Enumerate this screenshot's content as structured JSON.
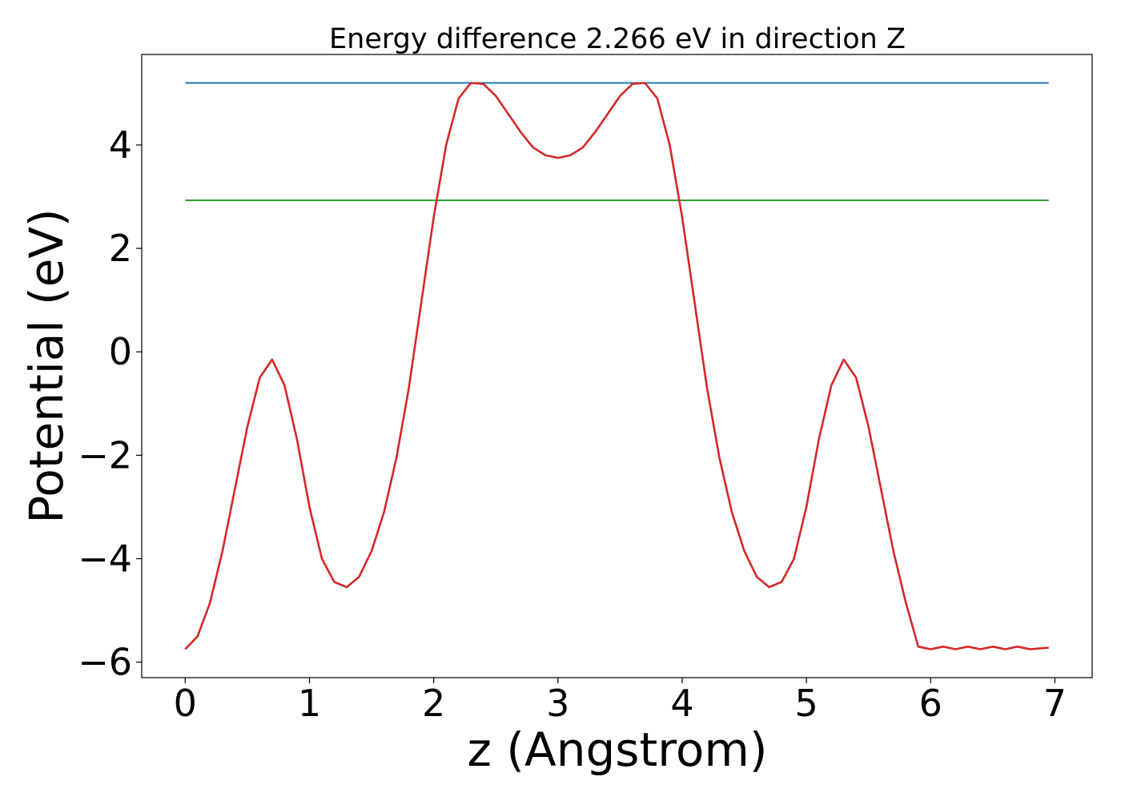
{
  "chart_data": {
    "type": "line",
    "title": "Energy difference 2.266 eV in direction Z",
    "xlabel": "z (Angstrom)",
    "ylabel": "Potential (eV)",
    "xlim": [
      -0.35,
      7.3
    ],
    "ylim": [
      -6.3,
      5.75
    ],
    "xticks": [
      0,
      1,
      2,
      3,
      4,
      5,
      6,
      7
    ],
    "xtick_labels": [
      "0",
      "1",
      "2",
      "3",
      "4",
      "5",
      "6",
      "7"
    ],
    "yticks": [
      -6,
      -4,
      -2,
      0,
      2,
      4
    ],
    "ytick_labels": [
      "−6",
      "−4",
      "−2",
      "0",
      "2",
      "4"
    ],
    "grid": false,
    "legend": "none",
    "series": [
      {
        "color": "#1f77b4",
        "x": [
          0,
          6.95
        ],
        "y": [
          5.2,
          5.2
        ]
      },
      {
        "color": "#2ca02c",
        "x": [
          0,
          6.95
        ],
        "y": [
          2.93,
          2.93
        ]
      },
      {
        "color": "#d62728",
        "x": [
          0,
          0.1,
          0.2,
          0.3,
          0.4,
          0.5,
          0.6,
          0.7,
          0.8,
          0.9,
          1.0,
          1.1,
          1.2,
          1.3,
          1.4,
          1.5,
          1.6,
          1.7,
          1.8,
          1.9,
          2.0,
          2.1,
          2.2,
          2.3,
          2.4,
          2.5,
          2.6,
          2.7,
          2.8,
          2.9,
          3.0,
          3.1,
          3.2,
          3.3,
          3.4,
          3.5,
          3.6,
          3.7,
          3.8,
          3.9,
          4.0,
          4.1,
          4.2,
          4.3,
          4.4,
          4.5,
          4.6,
          4.7,
          4.8,
          4.9,
          5.0,
          5.1,
          5.2,
          5.3,
          5.4,
          5.5,
          5.6,
          5.7,
          5.8,
          5.9,
          6.0,
          6.1,
          6.2,
          6.3,
          6.4,
          6.5,
          6.6,
          6.7,
          6.8,
          6.95
        ],
        "y": [
          -5.75,
          -5.5,
          -4.85,
          -3.85,
          -2.65,
          -1.45,
          -0.5,
          -0.15,
          -0.65,
          -1.7,
          -3.0,
          -4.0,
          -4.45,
          -4.55,
          -4.35,
          -3.85,
          -3.1,
          -2.05,
          -0.7,
          0.95,
          2.6,
          4.0,
          4.9,
          5.2,
          5.18,
          4.95,
          4.6,
          4.25,
          3.95,
          3.8,
          3.75,
          3.8,
          3.95,
          4.25,
          4.6,
          4.95,
          5.18,
          5.2,
          4.9,
          4.0,
          2.6,
          0.95,
          -0.7,
          -2.05,
          -3.1,
          -3.85,
          -4.35,
          -4.55,
          -4.45,
          -4.0,
          -3.0,
          -1.7,
          -0.65,
          -0.15,
          -0.5,
          -1.45,
          -2.65,
          -3.85,
          -4.85,
          -5.7,
          -5.75,
          -5.7,
          -5.75,
          -5.7,
          -5.75,
          -5.7,
          -5.75,
          -5.7,
          -5.75,
          -5.72
        ]
      }
    ]
  }
}
